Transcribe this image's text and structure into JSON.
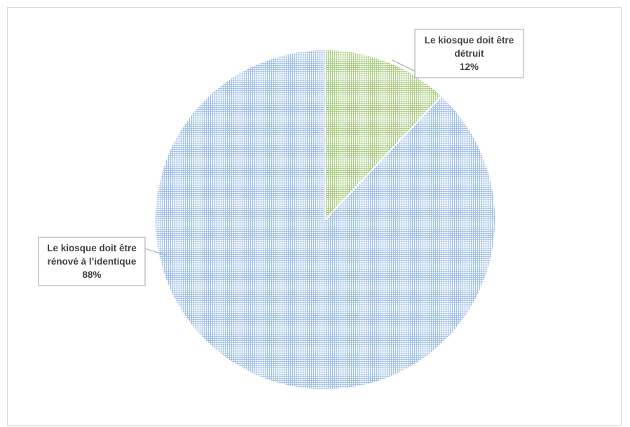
{
  "chart_data": {
    "type": "pie",
    "title": "",
    "slices": [
      {
        "label_lines": [
          "Le kiosque doit être",
          "détruit"
        ],
        "value": 12,
        "value_label": "12%",
        "color": "#9bc46e",
        "pattern": "fine-grid"
      },
      {
        "label_lines": [
          "Le kiosque doit être",
          "rénové à l’identique"
        ],
        "value": 88,
        "value_label": "88%",
        "color": "#8eb4e3",
        "pattern": "fine-grid"
      }
    ],
    "start_angle": "12 o'clock",
    "direction": "clockwise",
    "legend": "none",
    "data_labels": "callouts"
  }
}
